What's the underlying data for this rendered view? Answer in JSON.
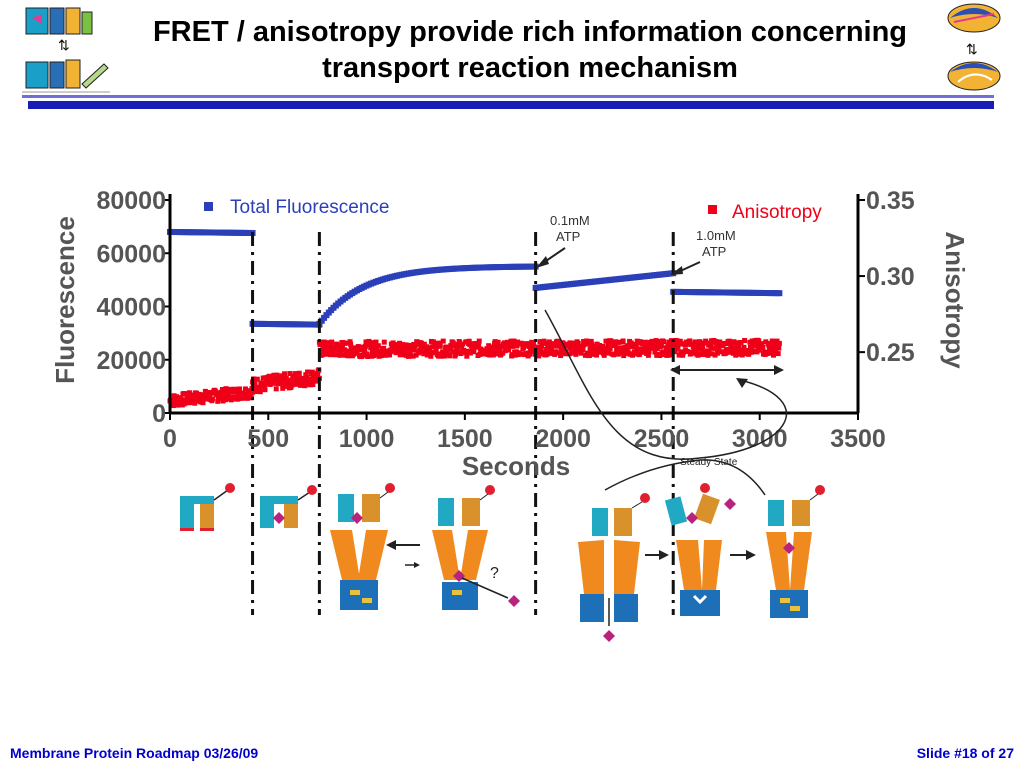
{
  "slide": {
    "title_line1": "FRET / anisotropy provide rich information concerning",
    "title_line2": "transport reaction mechanism",
    "footer_left": "Membrane Protein Roadmap 03/26/09",
    "footer_right": "Slide #18 of 27"
  },
  "colors": {
    "fluor": "#2b40b8",
    "aniso": "#f00018",
    "rule": "#1b1bb5",
    "footer": "#0000cc"
  },
  "chart_data": {
    "type": "scatter",
    "xlabel": "Seconds",
    "ylabel_left": "Fluorescence",
    "ylabel_right": "Anisotropy",
    "xlim": [
      0,
      3500
    ],
    "ylim_left": [
      0,
      80000
    ],
    "ylim_right": [
      0.21,
      0.35
    ],
    "x_ticks": [
      "0",
      "500",
      "1000",
      "1500",
      "2000",
      "2500",
      "3000",
      "3500"
    ],
    "y_ticks_left": [
      "0",
      "20000",
      "40000",
      "60000",
      "80000"
    ],
    "y_ticks_right": [
      "0.25",
      "0.30",
      "0.35"
    ],
    "legend": {
      "fluor": "Total Fluorescence",
      "aniso": "Anisotropy"
    },
    "annotations": {
      "atp1_line1": "0.1mM",
      "atp1_line2": "ATP",
      "atp2_line1": "1.0mM",
      "atp2_line2": "ATP",
      "steady": "Steady State",
      "question": "?"
    },
    "series": [
      {
        "name": "Total Fluorescence",
        "segments": [
          {
            "x": [
              0,
              420
            ],
            "y": [
              68000,
              67600
            ],
            "shape": "flat"
          },
          {
            "x": [
              420,
              760
            ],
            "y": [
              33500,
              33200
            ],
            "shape": "flat"
          },
          {
            "x": [
              760,
              1860
            ],
            "y": [
              33500,
              55000
            ],
            "shape": "rise"
          },
          {
            "x": [
              1860,
              2560
            ],
            "y": [
              47000,
              52500
            ],
            "shape": "linear"
          },
          {
            "x": [
              2560,
              3100
            ],
            "y": [
              45500,
              45000
            ],
            "shape": "flat"
          }
        ]
      },
      {
        "name": "Anisotropy",
        "segments": [
          {
            "x": [
              0,
              420
            ],
            "y": [
              0.218,
              0.224
            ],
            "noise": 0.004
          },
          {
            "x": [
              420,
              760
            ],
            "y": [
              0.228,
              0.234
            ],
            "noise": 0.005
          },
          {
            "x": [
              760,
              3100
            ],
            "y": [
              0.252,
              0.253
            ],
            "noise": 0.005
          }
        ]
      }
    ],
    "vlines": [
      420,
      760,
      1860,
      2560
    ]
  },
  "icons": [
    "transporter-cycle-logo-icon",
    "rotary-motor-logo-icon"
  ]
}
